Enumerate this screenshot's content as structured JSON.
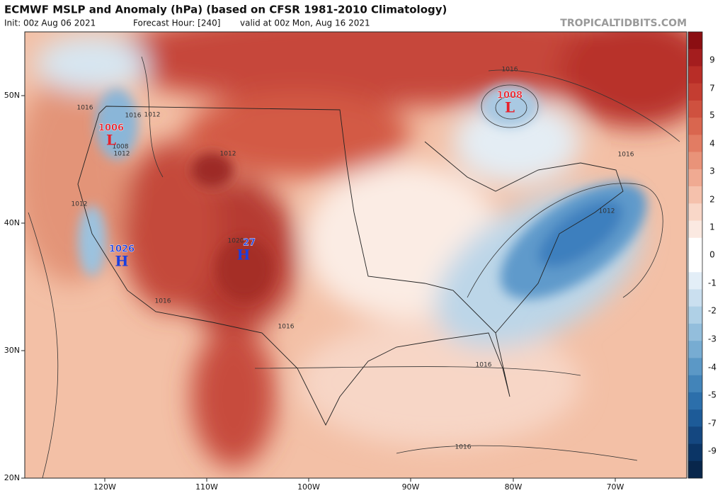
{
  "header": {
    "title": "ECMWF MSLP and Anomaly (hPa) (based on CFSR 1981-2010 Climatology)",
    "init": "Init: 00z Aug 06 2021",
    "forecast_hour": "Forecast Hour: [240]",
    "valid": "valid at 00z Mon, Aug 16 2021",
    "credit": "TROPICALTIDBITS.COM"
  },
  "map": {
    "lat_labels": [
      "50N",
      "40N",
      "30N",
      "20N"
    ],
    "lon_labels": [
      "120W",
      "110W",
      "100W",
      "90W",
      "80W",
      "70W"
    ],
    "pressure_centers": [
      {
        "label": "1006",
        "symbol": "L"
      },
      {
        "label": "1008",
        "symbol": "L"
      },
      {
        "label": "1026",
        "symbol": "H"
      },
      {
        "label": "27",
        "symbol": "H"
      }
    ],
    "contour_labels": [
      "1016",
      "1012",
      "1008",
      "1012",
      "1012",
      "1012",
      "1020",
      "1016",
      "1016",
      "1016",
      "1016",
      "1016",
      "1012",
      "1016",
      "1016"
    ]
  },
  "colorbar": {
    "labels": [
      "9",
      "7",
      "5",
      "4",
      "3",
      "2",
      "1",
      "0",
      "-1",
      "-2",
      "-3",
      "-4",
      "-5",
      "-7",
      "-9"
    ]
  }
}
